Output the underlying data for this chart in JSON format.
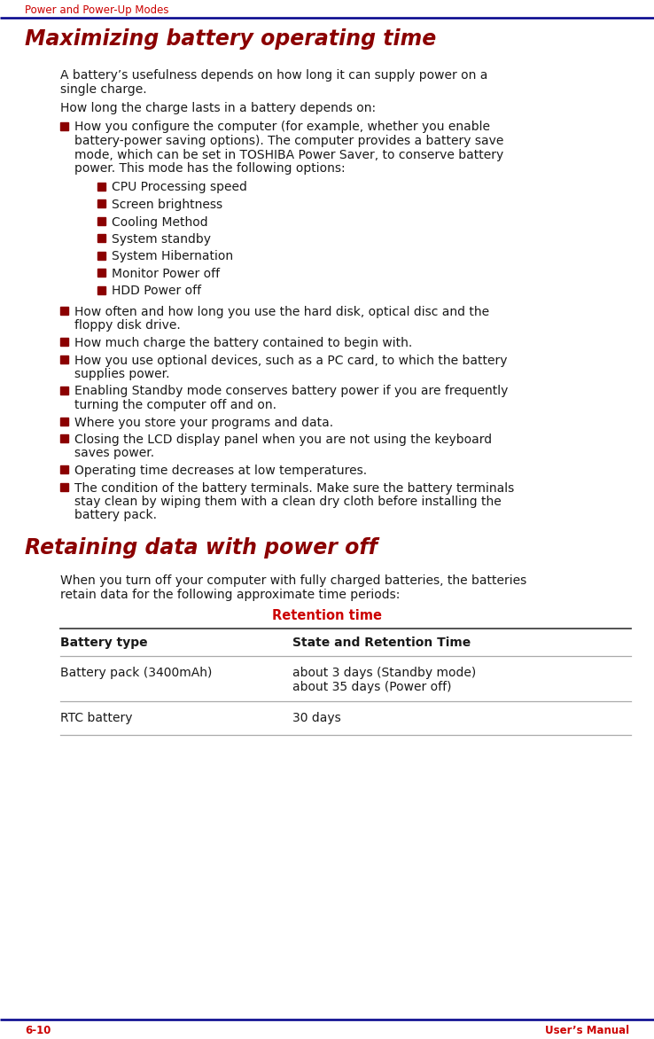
{
  "header_text": "Power and Power-Up Modes",
  "header_color": "#cc0000",
  "header_line_color": "#00008b",
  "title1": "Maximizing battery operating time",
  "title1_color": "#8b0000",
  "title2": "Retaining data with power off",
  "title2_color": "#8b0000",
  "body_color": "#1a1a1a",
  "bullet_color": "#8b0000",
  "footer_left": "6-10",
  "footer_right": "User’s Manual",
  "footer_color": "#cc0000",
  "bg_color": "#ffffff",
  "sub_bullets": [
    "CPU Processing speed",
    "Screen brightness",
    "Cooling Method",
    "System standby",
    "System Hibernation",
    "Monitor Power off",
    "HDD Power off"
  ],
  "table_title": "Retention time",
  "table_title_color": "#cc0000",
  "table_header_col1": "Battery type",
  "table_header_col2": "State and Retention Time",
  "table_row1_col1": "Battery pack (3400mAh)",
  "table_row1_col2a": "about 3 days (Standby mode)",
  "table_row1_col2b": "about 35 days (Power off)",
  "table_row2_col1": "RTC battery",
  "table_row2_col2": "30 days"
}
